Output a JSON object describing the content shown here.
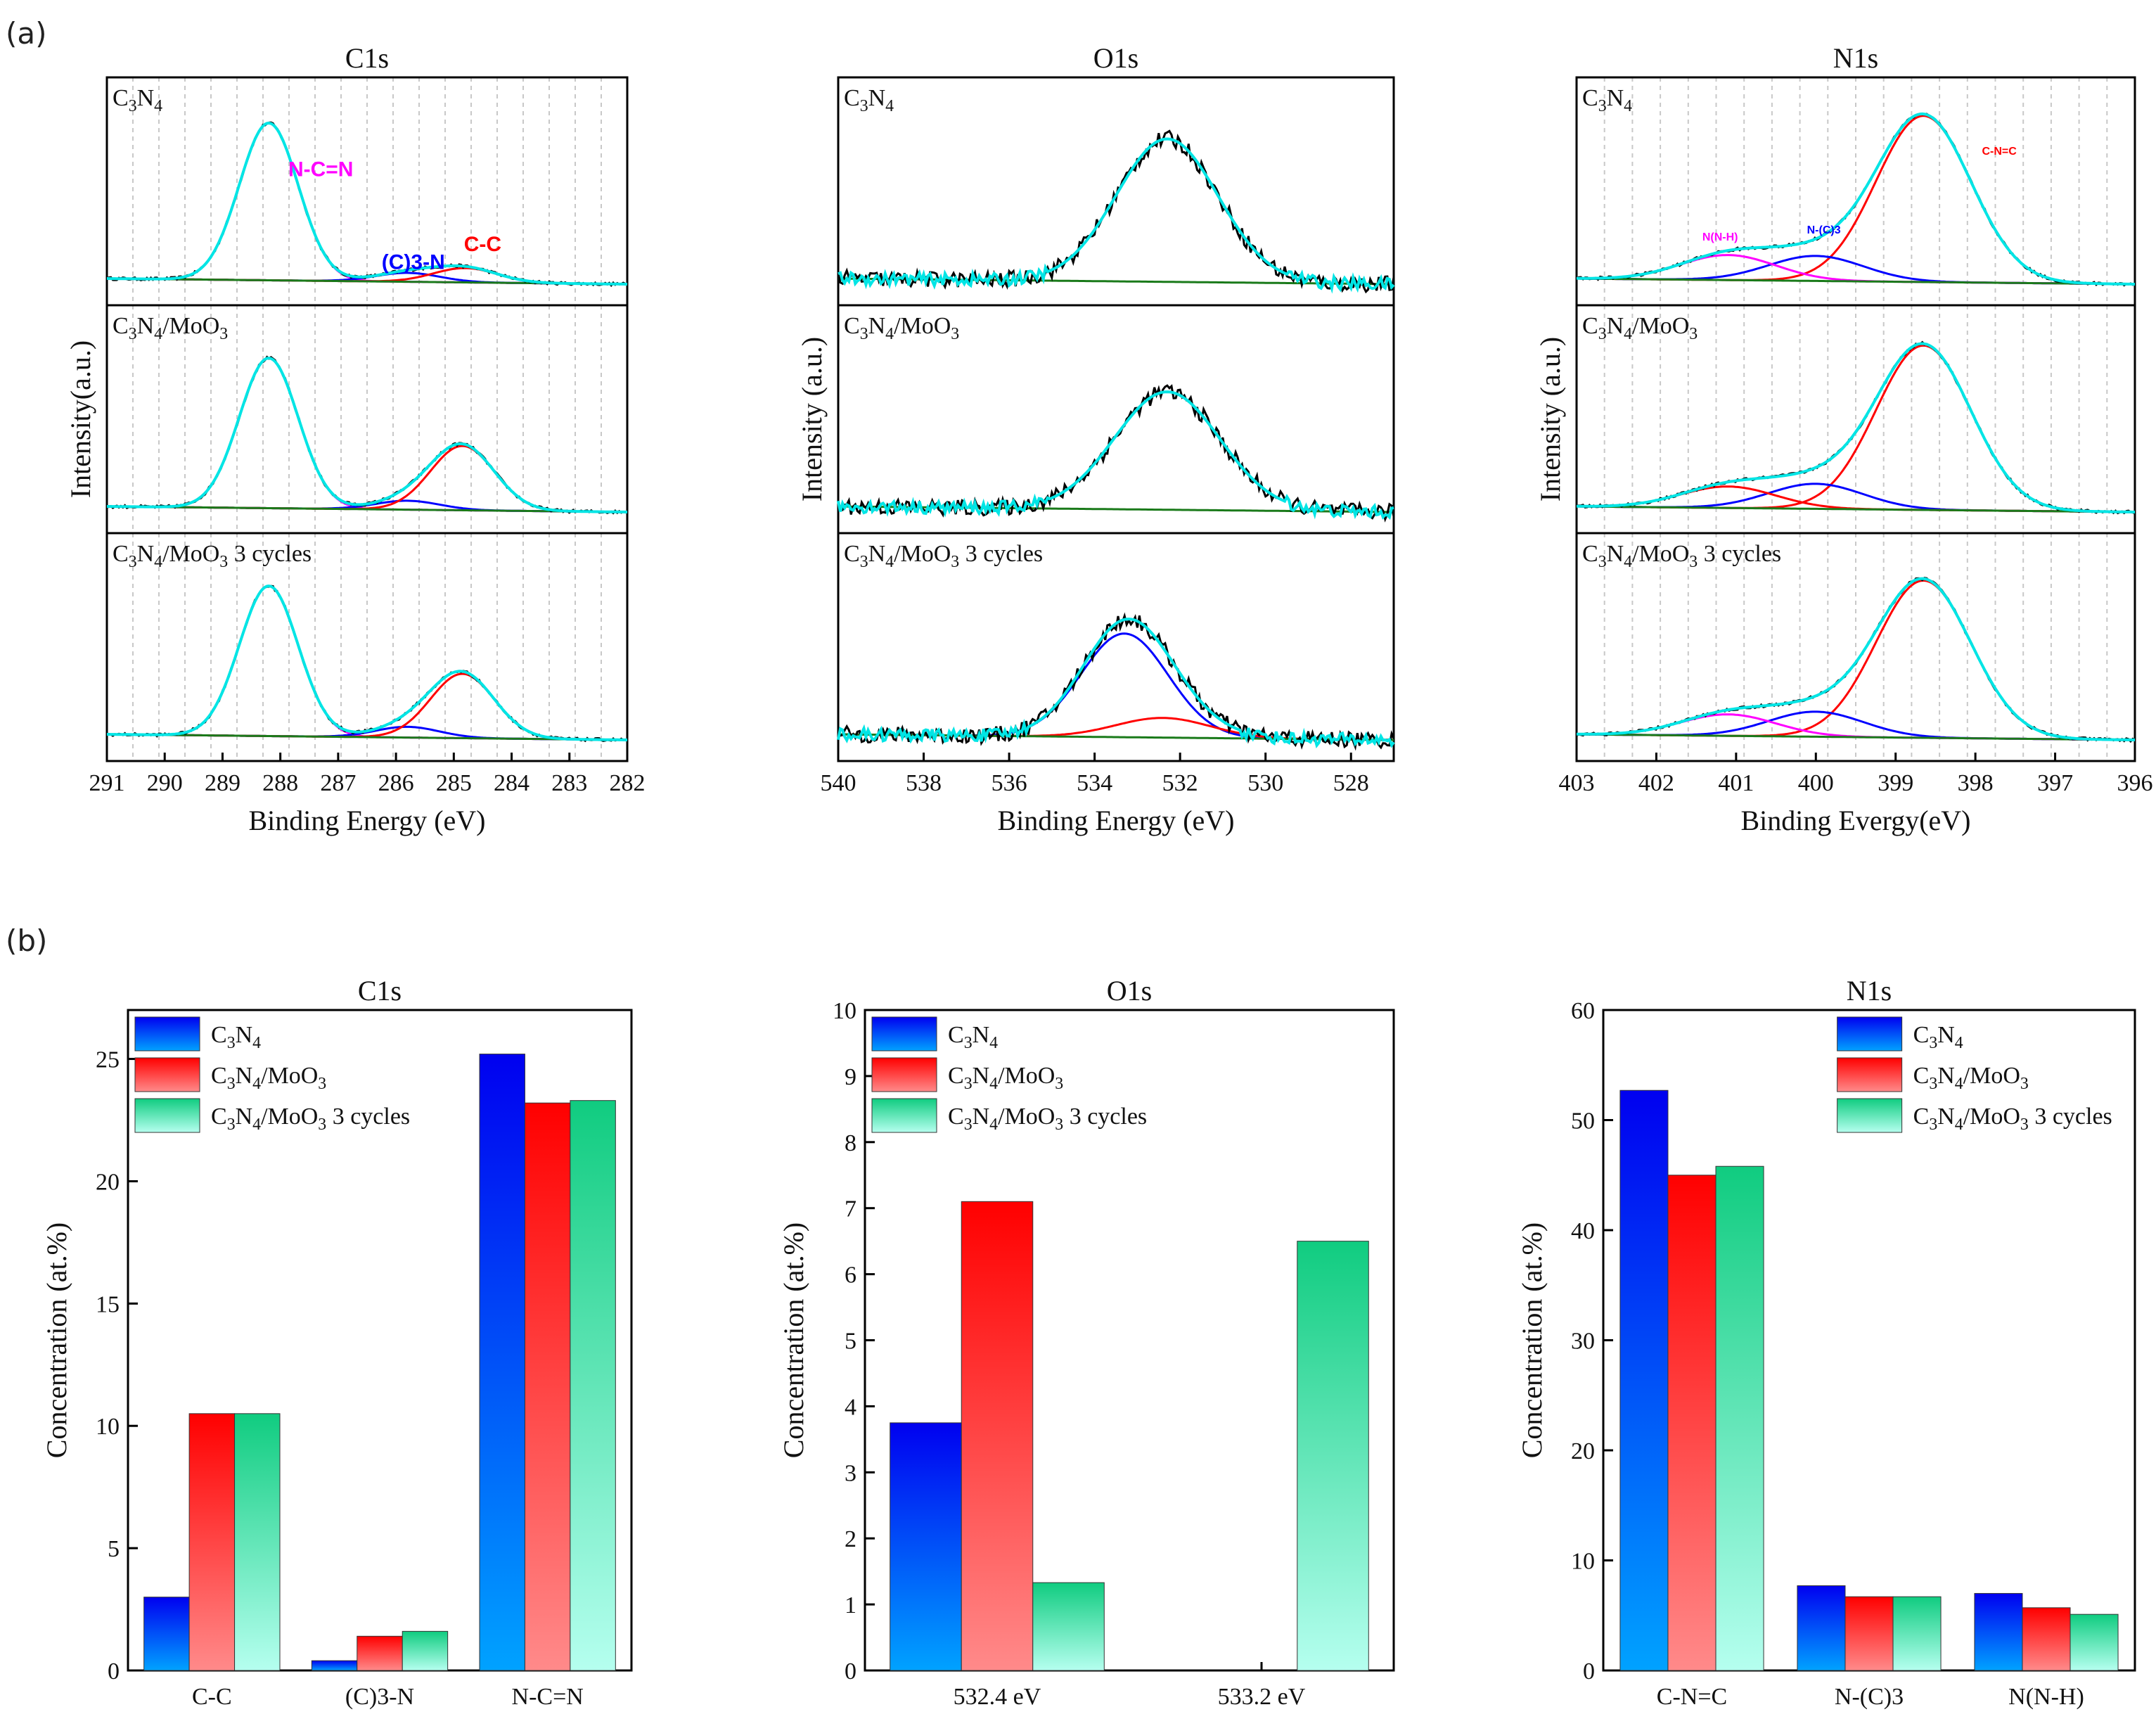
{
  "figure": {
    "label_a": "(a)",
    "label_b": "(b)"
  },
  "chart_data": [
    {
      "type": "line",
      "panel": "(a)",
      "title": "C1s",
      "xlabel": "Binding Energy (eV)",
      "ylabel": "Intensity(a.u.)",
      "xlim": [
        291,
        282
      ],
      "xticks": [
        "291",
        "290",
        "289",
        "288",
        "287",
        "286",
        "285",
        "284",
        "283",
        "282"
      ],
      "grid": true,
      "samples": [
        {
          "name_parts": [
            [
              "C",
              "n"
            ],
            [
              "3",
              "sub"
            ],
            [
              "N",
              "n"
            ],
            [
              "4",
              "sub"
            ]
          ],
          "components": [
            {
              "label": "N-C=N",
              "center": 288.2,
              "fwhm": 1.2,
              "height": 0.88,
              "color": "#ff00ff"
            },
            {
              "label": "(C)3-N",
              "center": 285.8,
              "fwhm": 1.3,
              "height": 0.05,
              "color": "#0000ff"
            },
            {
              "label": "C-C",
              "center": 284.8,
              "fwhm": 1.3,
              "height": 0.08,
              "color": "#ff0000"
            }
          ]
        },
        {
          "name_parts": [
            [
              "C",
              "n"
            ],
            [
              "3",
              "sub"
            ],
            [
              "N",
              "n"
            ],
            [
              "4",
              "sub"
            ],
            [
              "/MoO",
              "n"
            ],
            [
              "3",
              "sub"
            ]
          ],
          "components": [
            {
              "label": "N-C=N",
              "center": 288.2,
              "fwhm": 1.2,
              "height": 0.84,
              "color": "#ff00ff"
            },
            {
              "label": "(C)3-N",
              "center": 285.8,
              "fwhm": 1.3,
              "height": 0.05,
              "color": "#0000ff"
            },
            {
              "label": "C-C",
              "center": 284.85,
              "fwhm": 1.3,
              "height": 0.36,
              "color": "#ff0000"
            }
          ]
        },
        {
          "name_parts": [
            [
              "C",
              "n"
            ],
            [
              "3",
              "sub"
            ],
            [
              "N",
              "n"
            ],
            [
              "4",
              "sub"
            ],
            [
              "/MoO",
              "n"
            ],
            [
              "3",
              "sub"
            ],
            [
              " 3 cycles",
              "n"
            ]
          ],
          "components": [
            {
              "label": "N-C=N",
              "center": 288.2,
              "fwhm": 1.2,
              "height": 0.84,
              "color": "#ff00ff"
            },
            {
              "label": "(C)3-N",
              "center": 285.8,
              "fwhm": 1.3,
              "height": 0.06,
              "color": "#0000ff"
            },
            {
              "label": "C-C",
              "center": 284.85,
              "fwhm": 1.3,
              "height": 0.36,
              "color": "#ff0000"
            }
          ]
        }
      ],
      "annotations": [
        {
          "text": "N-C=N",
          "color": "#ff00ff",
          "x": 287.3,
          "sample": 0,
          "level": 0.62
        },
        {
          "text": "(C)3-N",
          "color": "#0000ff",
          "x": 285.7,
          "sample": 0,
          "level": 0.1
        },
        {
          "text": "C-C",
          "color": "#ff0000",
          "x": 284.5,
          "sample": 0,
          "level": 0.2
        }
      ],
      "curve_colors": {
        "raw": "#000000",
        "fit": "#00e5e5",
        "background": "#1a7a1a"
      }
    },
    {
      "type": "line",
      "panel": "(a)",
      "title": "O1s",
      "xlabel": "Binding Energy (eV)",
      "ylabel": "Intensity (a.u.)",
      "xlim": [
        540,
        527
      ],
      "xticks": [
        "540",
        "538",
        "536",
        "534",
        "532",
        "530",
        "528"
      ],
      "grid": false,
      "samples": [
        {
          "name_parts": [
            [
              "C",
              "n"
            ],
            [
              "3",
              "sub"
            ],
            [
              "N",
              "n"
            ],
            [
              "4",
              "sub"
            ]
          ],
          "components": [
            {
              "label": "532.4 eV",
              "center": 532.3,
              "fwhm": 2.8,
              "height": 0.8,
              "color": "#ff0000",
              "hidden": true
            }
          ]
        },
        {
          "name_parts": [
            [
              "C",
              "n"
            ],
            [
              "3",
              "sub"
            ],
            [
              "N",
              "n"
            ],
            [
              "4",
              "sub"
            ],
            [
              "/MoO",
              "n"
            ],
            [
              "3",
              "sub"
            ]
          ],
          "components": [
            {
              "label": "532.4 eV",
              "center": 532.3,
              "fwhm": 2.9,
              "height": 0.66,
              "color": "#ff0000",
              "hidden": true
            }
          ]
        },
        {
          "name_parts": [
            [
              "C",
              "n"
            ],
            [
              "3",
              "sub"
            ],
            [
              "N",
              "n"
            ],
            [
              "4",
              "sub"
            ],
            [
              "/MoO",
              "n"
            ],
            [
              "3",
              "sub"
            ],
            [
              " 3 cycles",
              "n"
            ]
          ],
          "components": [
            {
              "label": "533.2 eV",
              "center": 533.3,
              "fwhm": 2.4,
              "height": 0.58,
              "color": "#0000ff"
            },
            {
              "label": "532.4 eV",
              "center": 532.4,
              "fwhm": 2.6,
              "height": 0.11,
              "color": "#ff0000"
            }
          ]
        }
      ],
      "annotations": [],
      "curve_colors": {
        "raw": "#000000",
        "fit": "#00e5e5",
        "background": "#1a7a1a"
      }
    },
    {
      "type": "line",
      "panel": "(a)",
      "title": "N1s",
      "xlabel": "Binding Evergy(eV)",
      "ylabel": "Intensity (a.u.)",
      "xlim": [
        403,
        396
      ],
      "xticks": [
        "403",
        "402",
        "401",
        "400",
        "399",
        "398",
        "397",
        "396"
      ],
      "grid": true,
      "samples": [
        {
          "name_parts": [
            [
              "C",
              "n"
            ],
            [
              "3",
              "sub"
            ],
            [
              "N",
              "n"
            ],
            [
              "4",
              "sub"
            ]
          ],
          "components": [
            {
              "label": "C-N=C",
              "center": 398.65,
              "fwhm": 1.4,
              "height": 0.93,
              "color": "#ff0000"
            },
            {
              "label": "N-(C)3",
              "center": 400.0,
              "fwhm": 1.4,
              "height": 0.14,
              "color": "#0000ff"
            },
            {
              "label": "N(N-H)",
              "center": 401.1,
              "fwhm": 1.4,
              "height": 0.14,
              "color": "#ff00ff"
            }
          ]
        },
        {
          "name_parts": [
            [
              "C",
              "n"
            ],
            [
              "3",
              "sub"
            ],
            [
              "N",
              "n"
            ],
            [
              "4",
              "sub"
            ],
            [
              "/MoO",
              "n"
            ],
            [
              "3",
              "sub"
            ]
          ],
          "components": [
            {
              "label": "C-N=C",
              "center": 398.65,
              "fwhm": 1.4,
              "height": 0.92,
              "color": "#ff0000"
            },
            {
              "label": "N-(C)3",
              "center": 400.0,
              "fwhm": 1.4,
              "height": 0.14,
              "color": "#0000ff"
            },
            {
              "label": "N(N-H)",
              "center": 401.1,
              "fwhm": 1.4,
              "height": 0.12,
              "color": "#ff0000"
            }
          ]
        },
        {
          "name_parts": [
            [
              "C",
              "n"
            ],
            [
              "3",
              "sub"
            ],
            [
              "N",
              "n"
            ],
            [
              "4",
              "sub"
            ],
            [
              "/MoO",
              "n"
            ],
            [
              "3",
              "sub"
            ],
            [
              " 3 cycles",
              "n"
            ]
          ],
          "components": [
            {
              "label": "C-N=C",
              "center": 398.65,
              "fwhm": 1.4,
              "height": 0.88,
              "color": "#ff0000"
            },
            {
              "label": "N-(C)3",
              "center": 400.0,
              "fwhm": 1.4,
              "height": 0.14,
              "color": "#0000ff"
            },
            {
              "label": "N(N-H)",
              "center": 401.1,
              "fwhm": 1.4,
              "height": 0.12,
              "color": "#ff00ff"
            }
          ]
        }
      ],
      "annotations": [
        {
          "text": "C-N=C",
          "color": "#ff0000",
          "x": 397.7,
          "sample": 0,
          "level": 0.74
        },
        {
          "text": "N-(C)3",
          "color": "#0000ff",
          "x": 399.9,
          "sample": 0,
          "level": 0.3
        },
        {
          "text": "N(N-H)",
          "color": "#ff00ff",
          "x": 401.2,
          "sample": 0,
          "level": 0.26
        }
      ],
      "curve_colors": {
        "raw": "#000000",
        "fit": "#00e5e5",
        "background": "#1a7a1a"
      }
    },
    {
      "type": "bar",
      "panel": "(b)",
      "title": "C1s",
      "xlabel": "",
      "ylabel": "Concentration (at.%)",
      "ylim": [
        0,
        27
      ],
      "yticks": [
        0,
        5,
        10,
        15,
        20,
        25
      ],
      "categories": [
        "C-C",
        "(C)3-N",
        "N-C=N"
      ],
      "series": [
        {
          "name": "C3N4",
          "values": [
            3.0,
            0.4,
            25.2
          ]
        },
        {
          "name": "C3N4/MoO3",
          "values": [
            10.5,
            1.4,
            23.2
          ]
        },
        {
          "name": "C3N4/MoO3 3 cycles",
          "values": [
            10.5,
            1.6,
            23.3
          ]
        }
      ],
      "legend": "top-left"
    },
    {
      "type": "bar",
      "panel": "(b)",
      "title": "O1s",
      "xlabel": "",
      "ylabel": "Concentration (at.%)",
      "ylim": [
        0,
        10
      ],
      "yticks": [
        0,
        1,
        2,
        3,
        4,
        5,
        6,
        7,
        8,
        9,
        10
      ],
      "categories": [
        "532.4 eV",
        "533.2 eV"
      ],
      "series": [
        {
          "name": "C3N4",
          "values": [
            3.75,
            0
          ]
        },
        {
          "name": "C3N4/MoO3",
          "values": [
            7.1,
            0
          ]
        },
        {
          "name": "C3N4/MoO3 3 cycles",
          "values": [
            1.33,
            6.5
          ]
        }
      ],
      "legend": "top-left"
    },
    {
      "type": "bar",
      "panel": "(b)",
      "title": "N1s",
      "xlabel": "",
      "ylabel": "Concentration (at.%)",
      "ylim": [
        0,
        60
      ],
      "yticks": [
        0,
        10,
        20,
        30,
        40,
        50,
        60
      ],
      "categories": [
        "C-N=C",
        "N-(C)3",
        "N(N-H)"
      ],
      "series": [
        {
          "name": "C3N4",
          "values": [
            52.7,
            7.7,
            7.0
          ]
        },
        {
          "name": "C3N4/MoO3",
          "values": [
            45.0,
            6.7,
            5.7
          ]
        },
        {
          "name": "C3N4/MoO3 3 cycles",
          "values": [
            45.8,
            6.7,
            5.1
          ]
        }
      ],
      "legend": "top-center"
    }
  ],
  "legend_labels": [
    [
      [
        "C",
        "n"
      ],
      [
        "3",
        "sub"
      ],
      [
        "N",
        "n"
      ],
      [
        "4",
        "sub"
      ]
    ],
    [
      [
        "C",
        "n"
      ],
      [
        "3",
        "sub"
      ],
      [
        "N",
        "n"
      ],
      [
        "4",
        "sub"
      ],
      [
        "/MoO",
        "n"
      ],
      [
        "3",
        "sub"
      ]
    ],
    [
      [
        "C",
        "n"
      ],
      [
        "3",
        "sub"
      ],
      [
        "N",
        "n"
      ],
      [
        "4",
        "sub"
      ],
      [
        "/MoO",
        "n"
      ],
      [
        "3",
        "sub"
      ],
      [
        " 3 cycles",
        "n"
      ]
    ]
  ],
  "colors": {
    "blue": [
      "#0000f0",
      "#00a2ff"
    ],
    "red": [
      "#ff0000",
      "#ff8a8a"
    ],
    "green": [
      "#10cc80",
      "#b5ffef"
    ]
  }
}
